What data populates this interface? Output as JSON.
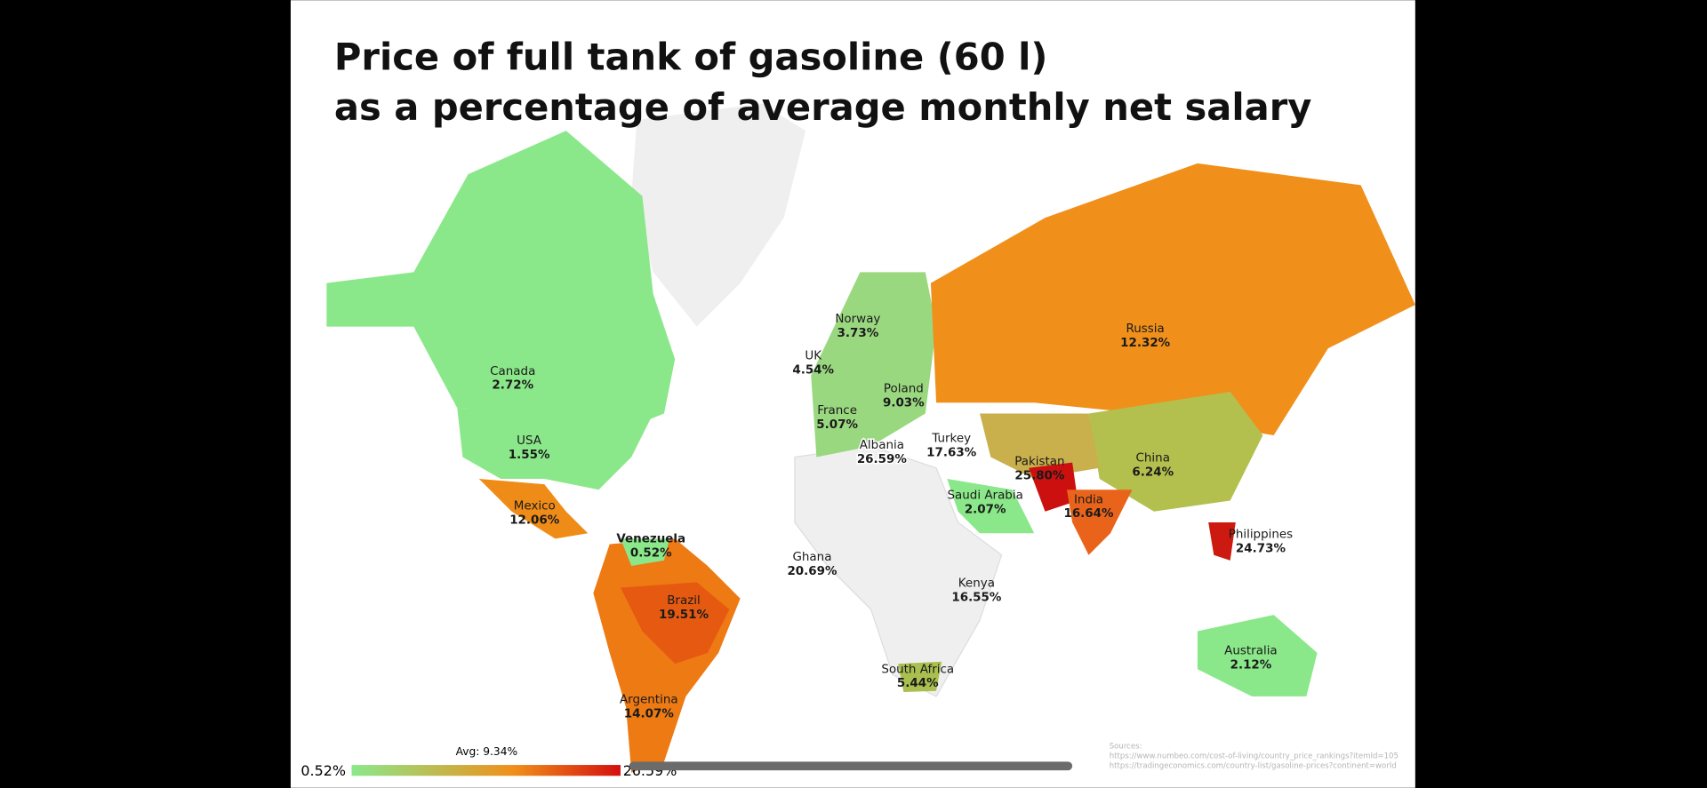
{
  "title": [
    "Price of full tank of gasoline (60 l)",
    "as a percentage of average monthly net salary"
  ],
  "countries": [
    {
      "name": "Canada",
      "value": "2.72%"
    },
    {
      "name": "USA",
      "value": "1.55%"
    },
    {
      "name": "Mexico",
      "value": "12.06%"
    },
    {
      "name": "Venezuela",
      "value": "0.52%"
    },
    {
      "name": "Brazil",
      "value": "19.51%"
    },
    {
      "name": "Argentina",
      "value": "14.07%"
    },
    {
      "name": "Norway",
      "value": "3.73%"
    },
    {
      "name": "UK",
      "value": "4.54%"
    },
    {
      "name": "Poland",
      "value": "9.03%"
    },
    {
      "name": "France",
      "value": "5.07%"
    },
    {
      "name": "Albania",
      "value": "26.59%"
    },
    {
      "name": "Turkey",
      "value": "17.63%"
    },
    {
      "name": "Russia",
      "value": "12.32%"
    },
    {
      "name": "Pakistan",
      "value": "25.80%"
    },
    {
      "name": "China",
      "value": "6.24%"
    },
    {
      "name": "Saudi Arabia",
      "value": "2.07%"
    },
    {
      "name": "India",
      "value": "16.64%"
    },
    {
      "name": "Philippines",
      "value": "24.73%"
    },
    {
      "name": "Ghana",
      "value": "20.69%"
    },
    {
      "name": "Kenya",
      "value": "16.55%"
    },
    {
      "name": "South Africa",
      "value": "5.44%"
    },
    {
      "name": "Australia",
      "value": "2.12%"
    }
  ],
  "legend": {
    "min": "0.52%",
    "avg": "Avg: 9.34%",
    "max": "26.59%"
  },
  "sources": {
    "heading": "Sources:",
    "links": [
      "https://www.numbeo.com/cost-of-living/country_price_rankings?itemId=105",
      "https://tradingeconomics.com/country-list/gasoline-prices?continent=world"
    ]
  }
}
